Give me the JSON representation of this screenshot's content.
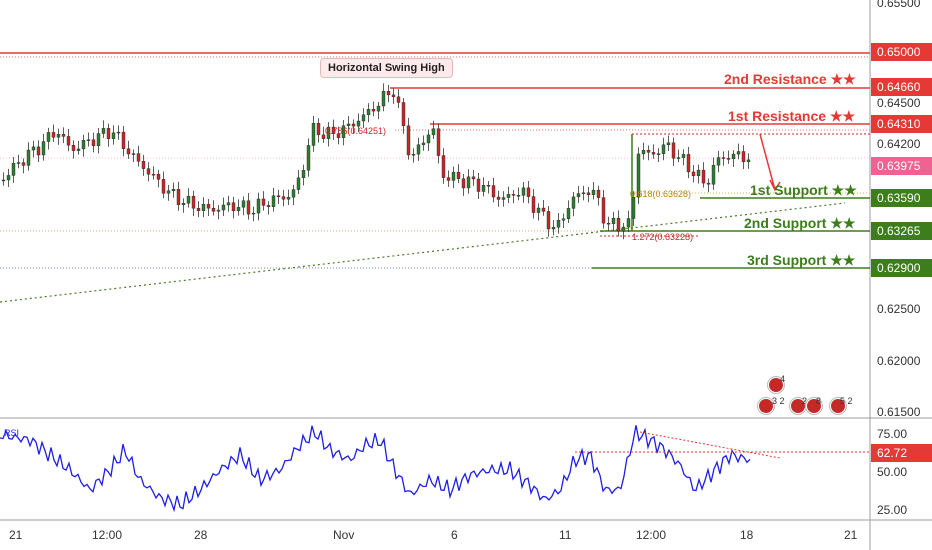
{
  "callout": {
    "text": "Horizontal Swing High"
  },
  "levels": [
    {
      "key": "r_line",
      "label": "",
      "price_badge": "0.65000",
      "color": "#e53935",
      "badge_color": "#e53935"
    },
    {
      "key": "r2",
      "label": "2nd Resistance ★★",
      "price_badge": "0.64660",
      "color": "#e53935",
      "badge_color": "#e53935"
    },
    {
      "key": "r1",
      "label": "1st Resistance ★★",
      "price_badge": "0.64310",
      "color": "#e53935",
      "badge_color": "#e53935"
    },
    {
      "key": "s1",
      "label": "1st Support ★★",
      "price_badge": "0.63590",
      "color": "#3d7d1b",
      "badge_color": "#3d7d1b"
    },
    {
      "key": "s2",
      "label": "2nd Support ★★",
      "price_badge": "0.63265",
      "color": "#3d7d1b",
      "badge_color": "#3d7d1b"
    },
    {
      "key": "s3",
      "label": "3rd Support ★★",
      "price_badge": "0.62900",
      "color": "#3d7d1b",
      "badge_color": "#3d7d1b"
    }
  ],
  "current_price": {
    "value": "0.63975",
    "color": "#f06292"
  },
  "price_axis_ticks": [
    "0.65500",
    "0.64500",
    "0.64200",
    "0.62500",
    "0.62000",
    "0.61500"
  ],
  "fib_labels": [
    {
      "text": "0.618(0.63628)",
      "color": "#b8860b"
    },
    {
      "text": "1.272(0.63228)",
      "color": "#c62828"
    },
    {
      "text": "0.786(0.64251)",
      "color": "#c62828"
    }
  ],
  "rsi": {
    "current_badge": "62.72",
    "badge_color": "#e53935",
    "ticks": [
      "75.00",
      "50.00",
      "25.00"
    ],
    "label": "RSI"
  },
  "time_axis": [
    "21",
    "12:00",
    "28",
    "Nov",
    "6",
    "11",
    "12:00",
    "18",
    "21"
  ],
  "events": [
    {
      "count": "4"
    },
    {
      "count": "3 2"
    },
    {
      "count": "2"
    },
    {
      "count": "8"
    },
    {
      "count": "5 2"
    }
  ],
  "colors": {
    "candle_up": "#2e7d32",
    "candle_down": "#c62828",
    "rsi_line": "#1e1ee6",
    "trendline": "#4a7a2a",
    "separator": "#888888"
  },
  "chart_data": {
    "type": "candlestick",
    "symbol_price_now": 0.63975,
    "ylim": [
      0.615,
      0.655
    ],
    "rsi_ylim": [
      25,
      75
    ]
  }
}
